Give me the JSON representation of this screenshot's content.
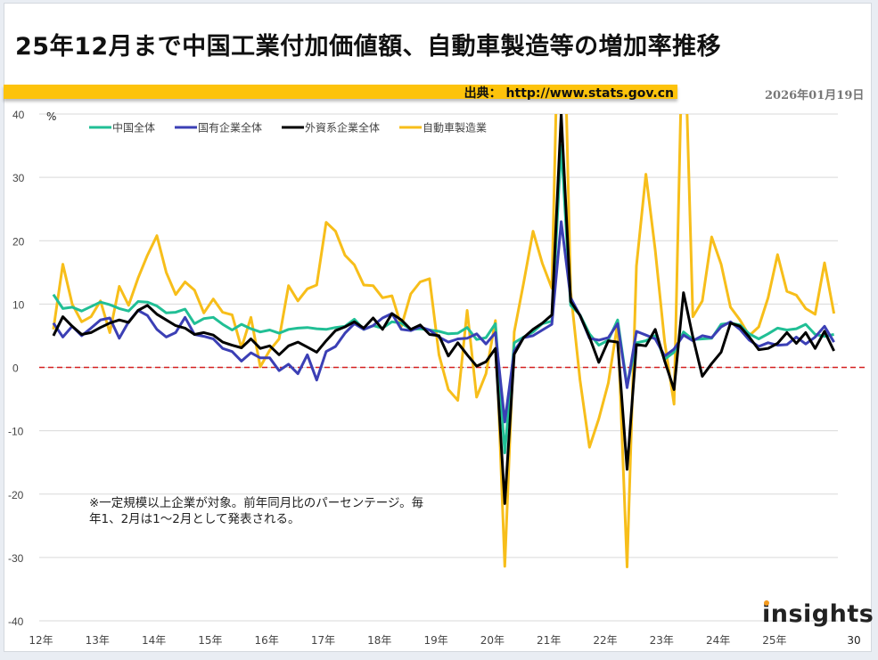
{
  "title": "25年12月まで中国工業付加価値額、自動車製造等の増加率推移",
  "source": "出典： http://www.stats.gov.cn",
  "date": "2026年01月19日",
  "note": "※一定規模以上企業が対象。前年同月比のパーセンテージ。毎年1、2月は1～2月として発表される。",
  "logo": "insights",
  "chart_data": {
    "type": "line",
    "title": "",
    "ylabel": "%",
    "ylim": [
      -40,
      40
    ],
    "yticks": [
      40,
      30,
      20,
      10,
      0,
      -10,
      -20,
      -30,
      -40
    ],
    "xticks": [
      "12年",
      "13年",
      "14年",
      "15年",
      "16年",
      "17年",
      "18年",
      "19年",
      "20年",
      "21年",
      "22年",
      "23年",
      "24年",
      "25年"
    ],
    "x_end_label": "30",
    "grid": true,
    "legend": "top",
    "reference_line": {
      "value": 0,
      "color": "#d42020",
      "style": "dashed"
    },
    "x": "bi-monthly points from Feb 2012 to Dec 2025 (Feb, Apr, Jun, Aug, Oct, Dec of each year)",
    "series": [
      {
        "name": "中国全体",
        "color": "#21bf95",
        "values": [
          11.5,
          9.3,
          9.5,
          8.9,
          9.6,
          10.3,
          9.9,
          9.3,
          8.9,
          10.4,
          10.3,
          9.7,
          8.6,
          8.7,
          9.2,
          6.9,
          7.7,
          7.9,
          6.8,
          5.9,
          6.8,
          6.1,
          5.6,
          5.9,
          5.4,
          6.0,
          6.2,
          6.3,
          6.1,
          6.0,
          6.3,
          6.5,
          7.6,
          6.0,
          6.6,
          6.2,
          7.2,
          7.0,
          6.0,
          6.1,
          5.9,
          5.7,
          5.3,
          5.4,
          6.3,
          4.4,
          4.7,
          6.9,
          -13.5,
          3.9,
          4.8,
          5.6,
          6.9,
          7.3,
          35.1,
          9.8,
          8.3,
          5.3,
          3.5,
          4.3,
          7.5,
          -2.9,
          3.9,
          4.2,
          5.0,
          1.3,
          2.4,
          5.6,
          4.4,
          4.5,
          4.6,
          6.8,
          7.0,
          6.7,
          5.3,
          4.5,
          5.3,
          6.2,
          5.9,
          6.1,
          6.8,
          5.2,
          4.9,
          5.2
        ]
      },
      {
        "name": "国有企業全体",
        "color": "#3b3fb5",
        "values": [
          7.0,
          4.8,
          6.5,
          5.0,
          6.2,
          7.5,
          7.8,
          4.6,
          7.2,
          9.0,
          8.2,
          6.0,
          4.8,
          5.5,
          7.9,
          5.2,
          4.9,
          4.5,
          3.0,
          2.5,
          1.0,
          2.3,
          1.5,
          1.5,
          -0.5,
          0.5,
          -1.0,
          2.0,
          -2.0,
          2.5,
          3.3,
          5.4,
          6.9,
          6.0,
          6.6,
          7.8,
          8.5,
          6.0,
          5.8,
          6.4,
          5.9,
          4.8,
          4.0,
          4.5,
          4.6,
          5.3,
          3.7,
          5.5,
          -8.6,
          2.6,
          4.7,
          5.0,
          5.9,
          6.8,
          23.0,
          11.0,
          8.2,
          4.6,
          4.3,
          4.7,
          6.9,
          -3.2,
          5.7,
          5.1,
          4.5,
          1.8,
          2.9,
          5.1,
          4.2,
          5.0,
          4.7,
          6.4,
          7.2,
          6.0,
          4.3,
          3.3,
          3.9,
          3.5,
          3.6,
          4.8,
          3.7,
          4.8,
          6.5,
          4.0
        ]
      },
      {
        "name": "外資系企業全体",
        "color": "#000000",
        "values": [
          5.0,
          8.0,
          6.5,
          5.2,
          5.5,
          6.3,
          7.0,
          7.5,
          7.1,
          9.0,
          9.8,
          8.4,
          7.5,
          6.6,
          6.2,
          5.2,
          5.5,
          5.1,
          4.0,
          3.5,
          3.1,
          4.5,
          3.0,
          3.4,
          2.0,
          3.4,
          4.0,
          3.2,
          2.4,
          4.2,
          5.8,
          6.4,
          7.2,
          6.2,
          7.8,
          6.0,
          8.5,
          7.5,
          6.0,
          6.7,
          5.2,
          5.0,
          1.8,
          3.9,
          2.0,
          0.2,
          0.9,
          3.0,
          -21.5,
          2.1,
          4.7,
          6.0,
          7.0,
          8.3,
          40.0,
          10.4,
          8.2,
          4.8,
          0.8,
          4.2,
          4.0,
          -16.1,
          3.6,
          3.4,
          6.0,
          1.0,
          -3.5,
          11.8,
          4.8,
          -1.4,
          0.6,
          2.4,
          7.0,
          6.5,
          4.8,
          2.8,
          3.0,
          3.8,
          5.5,
          3.8,
          5.5,
          3.0,
          5.7,
          2.6
        ]
      },
      {
        "name": "自動車製造業",
        "color": "#f7be1a",
        "values": [
          6.0,
          16.3,
          10.0,
          7.2,
          8.0,
          10.5,
          5.5,
          12.8,
          9.8,
          14.1,
          17.7,
          20.8,
          15.0,
          11.5,
          13.5,
          12.2,
          8.6,
          10.8,
          8.7,
          8.3,
          3.1,
          7.9,
          0.1,
          2.7,
          4.5,
          12.9,
          10.5,
          12.4,
          13.0,
          22.9,
          21.5,
          17.7,
          16.2,
          13.0,
          12.9,
          11.0,
          11.3,
          6.5,
          11.6,
          13.5,
          14.0,
          2.0,
          -3.5,
          -5.2,
          9.0,
          -4.7,
          -1.0,
          7.4,
          -31.4,
          5.6,
          13.3,
          21.5,
          16.4,
          12.5,
          76,
          12.0,
          -2.0,
          -12.6,
          -8.1,
          -2.5,
          7.0,
          -31.5,
          16.0,
          30.5,
          18.5,
          4.0,
          -5.8,
          60.0,
          8.0,
          10.5,
          20.6,
          16.3,
          9.5,
          7.5,
          5.0,
          6.4,
          11.0,
          17.8,
          12.0,
          11.4,
          9.3,
          8.4,
          16.5,
          8.5
        ]
      }
    ]
  }
}
